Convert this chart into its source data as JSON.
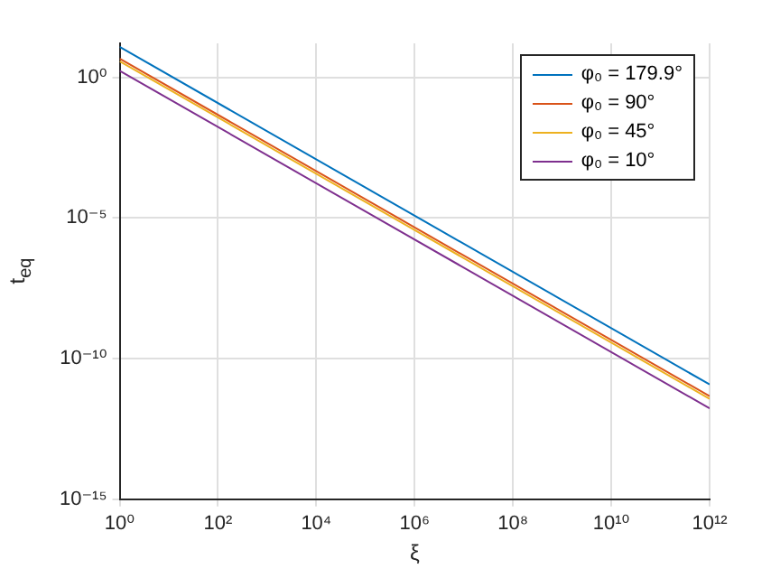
{
  "chart_data": {
    "type": "line",
    "xlabel": "ξ",
    "ylabel": "t$_{eq}$",
    "x": [
      1,
      1000000000000
    ],
    "series": [
      {
        "name": "φ₀ = 179.9°",
        "color": "#0072bd",
        "values": [
          12,
          1.2e-11
        ]
      },
      {
        "name": "φ₀ = 90°",
        "color": "#d95319",
        "values": [
          4.6,
          4.6e-12
        ]
      },
      {
        "name": "φ₀ = 45°",
        "color": "#edb120",
        "values": [
          3.7,
          3.7e-12
        ]
      },
      {
        "name": "φ₀ = 10°",
        "color": "#7e2f8e",
        "values": [
          1.7,
          1.7e-12
        ]
      }
    ],
    "log": "xy",
    "xlim": [
      1,
      1000000000000
    ],
    "ylim": [
      1e-15,
      16
    ],
    "xticks": [
      {
        "value": 1,
        "label": "10⁰"
      },
      {
        "value": 100,
        "label": "10²"
      },
      {
        "value": 10000,
        "label": "10⁴"
      },
      {
        "value": 1000000,
        "label": "10⁶"
      },
      {
        "value": 100000000,
        "label": "10⁸"
      },
      {
        "value": 10000000000,
        "label": "10¹⁰"
      },
      {
        "value": 1000000000000,
        "label": "10¹²"
      }
    ],
    "yticks": [
      {
        "value": 1e-15,
        "label": "10⁻¹⁵"
      },
      {
        "value": 1e-10,
        "label": "10⁻¹⁰"
      },
      {
        "value": 1e-05,
        "label": "10⁻⁵"
      },
      {
        "value": 1,
        "label": "10⁰"
      }
    ],
    "grid": true,
    "legend": "top right"
  }
}
